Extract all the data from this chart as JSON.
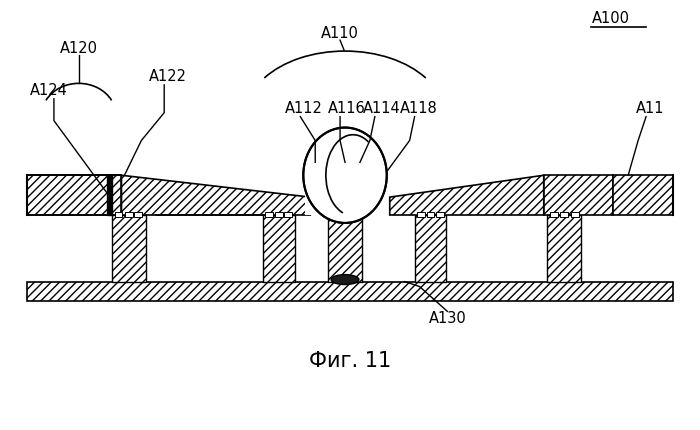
{
  "title": "Фиг. 11",
  "label_A100": "A100",
  "label_A110": "A110",
  "label_A120": "A120",
  "label_A122": "A122",
  "label_A124": "A124",
  "label_A112": "A112",
  "label_A116": "A116",
  "label_A114": "A114",
  "label_A118": "A118",
  "label_A130": "A130",
  "label_A11": "A11",
  "bg_color": "#ffffff",
  "line_color": "#000000",
  "figsize": [
    7.0,
    4.3
  ],
  "dpi": 100
}
